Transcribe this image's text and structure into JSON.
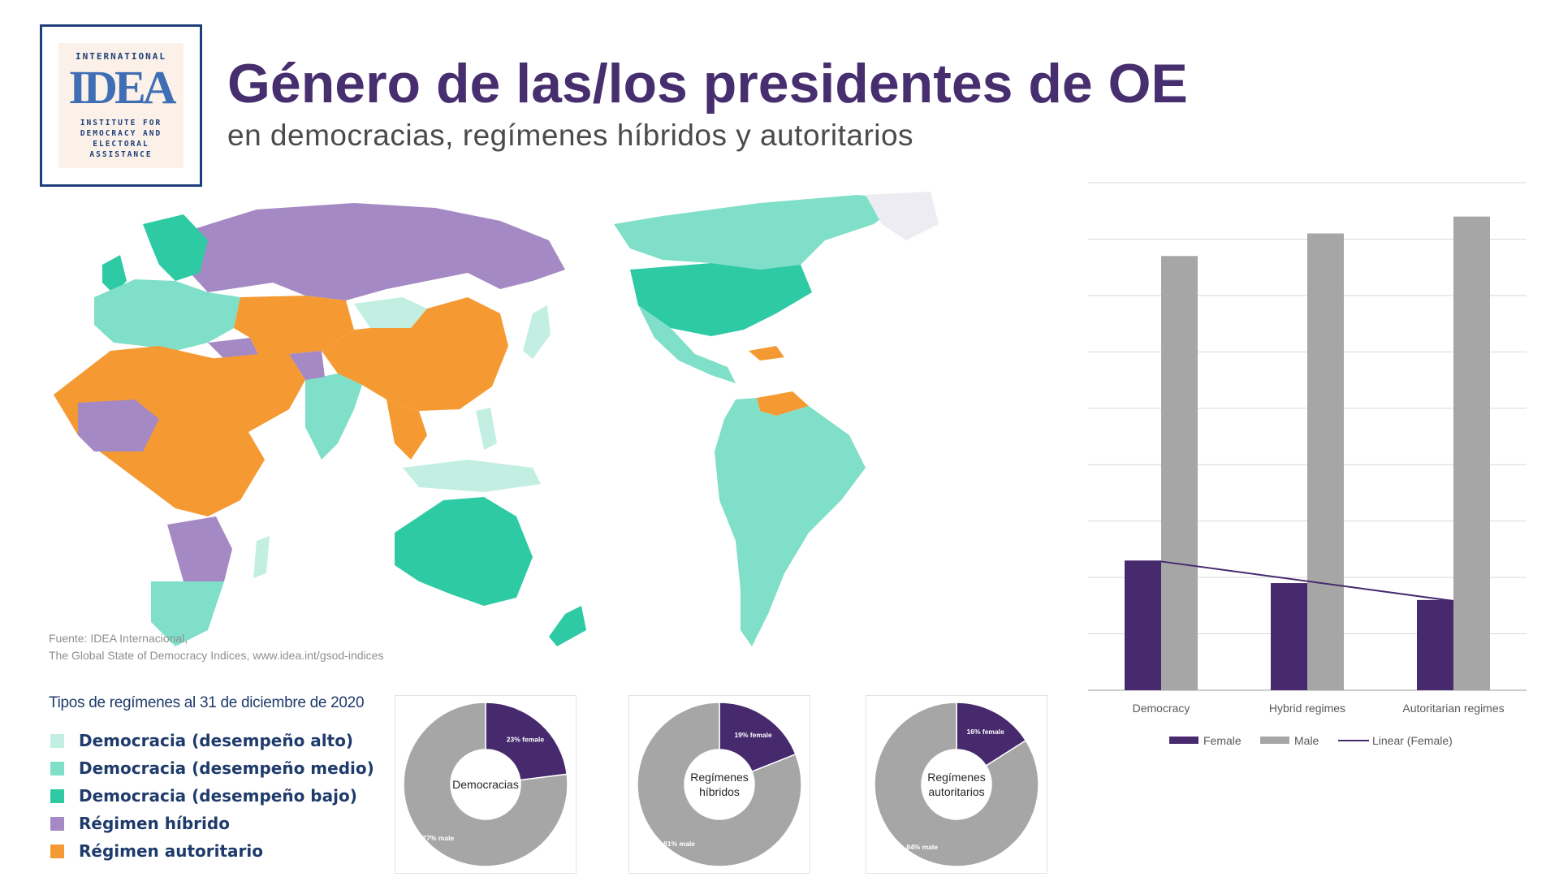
{
  "header": {
    "title": "Género de las/los presidentes de OE",
    "subtitle": "en democracias, regímenes híbridos y autoritarios"
  },
  "logo": {
    "top": "INTERNATIONAL",
    "mark": "IDEA",
    "line1": "INSTITUTE FOR",
    "line2": "DEMOCRACY AND",
    "line3": "ELECTORAL",
    "line4": "ASSISTANCE"
  },
  "source": {
    "line1": "Fuente: IDEA Internacional,",
    "line2": "The Global State of Democracy Indices, www.idea.int/gsod-indices"
  },
  "legend": {
    "title": "Tipos de regímenes al 31 de diciembre de 2020",
    "items": [
      {
        "label": "Democracia (desempeño alto)",
        "color": "#c2efe2"
      },
      {
        "label": "Democracia (desempeño medio)",
        "color": "#7fdfc8"
      },
      {
        "label": "Democracia (desempeño bajo)",
        "color": "#2ecaa4"
      },
      {
        "label": "Régimen híbrido",
        "color": "#a589c4"
      },
      {
        "label": "Régimen autoritario",
        "color": "#f59a32"
      }
    ]
  },
  "colors": {
    "female": "#472a6e",
    "male": "#a6a6a6",
    "trend": "#472a6e",
    "title": "#472e6f"
  },
  "chart_data": [
    {
      "type": "bar",
      "categories": [
        "Democracy",
        "Hybrid regimes",
        "Autoritarian regimes"
      ],
      "series": [
        {
          "name": "Female",
          "values": [
            23,
            19,
            16
          ]
        },
        {
          "name": "Male",
          "values": [
            77,
            81,
            84
          ]
        }
      ],
      "trendline": {
        "name": "Linear (Female)",
        "of": "Female"
      },
      "ylim": [
        0,
        90
      ],
      "grid": true,
      "legend": "bottom"
    },
    {
      "type": "pie",
      "label": "Democracias",
      "slices": [
        {
          "name": "female",
          "value": 23,
          "text": "23% female"
        },
        {
          "name": "male",
          "value": 77,
          "text": "77% male"
        }
      ]
    },
    {
      "type": "pie",
      "label": "Regímenes híbridos",
      "slices": [
        {
          "name": "female",
          "value": 19,
          "text": "19% female"
        },
        {
          "name": "male",
          "value": 81,
          "text": "81% male"
        }
      ]
    },
    {
      "type": "pie",
      "label": "Regímenes autoritarios",
      "slices": [
        {
          "name": "female",
          "value": 16,
          "text": "16% female"
        },
        {
          "name": "male",
          "value": 84,
          "text": "84% male"
        }
      ]
    }
  ]
}
